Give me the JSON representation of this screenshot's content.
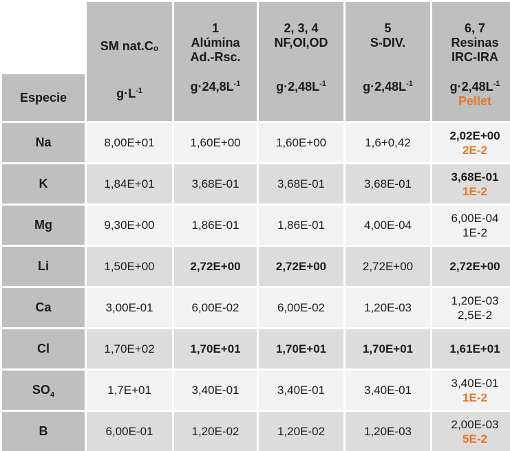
{
  "header": {
    "species_label": "Especie",
    "columns": [
      {
        "lines": [
          "SM nat.Cₒ"
        ],
        "unit": "g·L",
        "unit_exp": "-1",
        "extra": ""
      },
      {
        "lines": [
          "1",
          "Alúmina",
          "Ad.-Rsc."
        ],
        "unit": "g·24,8L",
        "unit_exp": "-1",
        "extra": ""
      },
      {
        "lines": [
          "2, 3, 4",
          "NF,OI,OD"
        ],
        "unit": "g·2,48L",
        "unit_exp": "-1",
        "extra": ""
      },
      {
        "lines": [
          "5",
          "S-DIV."
        ],
        "unit": "g·2,48L",
        "unit_exp": "-1",
        "extra": ""
      },
      {
        "lines": [
          "6, 7",
          "Resinas",
          "IRC-IRA"
        ],
        "unit": "g·2,48L",
        "unit_exp": "-1",
        "extra": "Pellet"
      }
    ]
  },
  "rows": [
    {
      "species": "Na",
      "species_sub": "",
      "cells": [
        {
          "text": "8,00E+01",
          "bold": false
        },
        {
          "text": "1,60E+00",
          "bold": false
        },
        {
          "text": "1,60E+00",
          "bold": false
        },
        {
          "text": "1,6+0,42",
          "bold": false
        },
        {
          "text": "2,02E+00",
          "bold": true,
          "line2": "2E-2",
          "line2_orange": true
        }
      ]
    },
    {
      "species": "K",
      "species_sub": "",
      "cells": [
        {
          "text": "1,84E+01",
          "bold": false
        },
        {
          "text": "3,68E-01",
          "bold": false
        },
        {
          "text": "3,68E-01",
          "bold": false
        },
        {
          "text": "3,68E-01",
          "bold": false
        },
        {
          "text": "3,68E-01",
          "bold": true,
          "line2": "1E-2",
          "line2_orange": true
        }
      ]
    },
    {
      "species": "Mg",
      "species_sub": "",
      "cells": [
        {
          "text": "9,30E+00",
          "bold": false
        },
        {
          "text": "1,86E-01",
          "bold": false
        },
        {
          "text": "1,86E-01",
          "bold": false
        },
        {
          "text": "4,00E-04",
          "bold": false
        },
        {
          "text": "6,00E-04",
          "bold": false,
          "line2": "1E-2",
          "line2_orange": false
        }
      ]
    },
    {
      "species": "Li",
      "species_sub": "",
      "cells": [
        {
          "text": "1,50E+00",
          "bold": false
        },
        {
          "text": "2,72E+00",
          "bold": true
        },
        {
          "text": "2,72E+00",
          "bold": true
        },
        {
          "text": "2,72E+00",
          "bold": false
        },
        {
          "text": "2,72E+00",
          "bold": true
        }
      ]
    },
    {
      "species": "Ca",
      "species_sub": "",
      "cells": [
        {
          "text": "3,00E-01",
          "bold": false
        },
        {
          "text": "6,00E-02",
          "bold": false
        },
        {
          "text": "6,00E-02",
          "bold": false
        },
        {
          "text": "1,20E-03",
          "bold": false
        },
        {
          "text": "1,20E-03",
          "bold": false,
          "line2": "2,5E-2",
          "line2_orange": false
        }
      ]
    },
    {
      "species": "Cl",
      "species_sub": "",
      "cells": [
        {
          "text": "1,70E+02",
          "bold": false
        },
        {
          "text": "1,70E+01",
          "bold": true
        },
        {
          "text": "1,70E+01",
          "bold": true
        },
        {
          "text": "1,70E+01",
          "bold": true
        },
        {
          "text": "1,61E+01",
          "bold": true
        }
      ]
    },
    {
      "species": "SO",
      "species_sub": "4",
      "cells": [
        {
          "text": "1,7E+01",
          "bold": false
        },
        {
          "text": "3,40E-01",
          "bold": false
        },
        {
          "text": "3,40E-01",
          "bold": false
        },
        {
          "text": "3,40E-01",
          "bold": false
        },
        {
          "text": "3,40E-01",
          "bold": false,
          "line2": "1E-2",
          "line2_orange": true
        }
      ]
    },
    {
      "species": "B",
      "species_sub": "",
      "cells": [
        {
          "text": "6,00E-01",
          "bold": false
        },
        {
          "text": "1,20E-02",
          "bold": false
        },
        {
          "text": "1,20E-02",
          "bold": false
        },
        {
          "text": "1,20E-03",
          "bold": false
        },
        {
          "text": "2,00E-03",
          "bold": false,
          "line2": "5E-2",
          "line2_orange": true
        }
      ]
    }
  ],
  "colors": {
    "header_bg": "#bfbfbf",
    "row_light": "#f2f2f2",
    "row_dark": "#dcdcdc",
    "accent_orange": "#e5772a"
  }
}
